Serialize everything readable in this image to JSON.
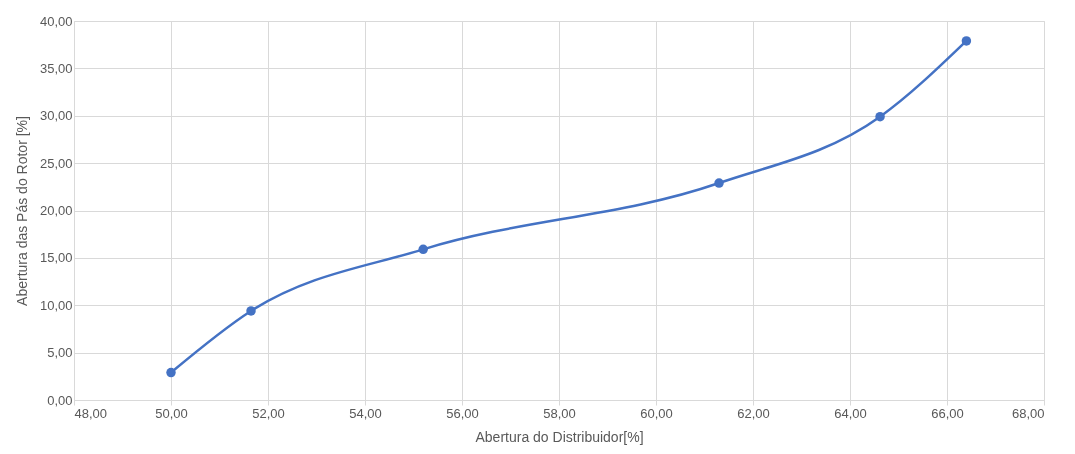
{
  "chart_data": {
    "type": "line",
    "xlabel": "Abertura do Distribuidor[%]",
    "ylabel": "Abertura das Pás do Rotor [%]",
    "x": [
      50.0,
      51.65,
      55.2,
      61.3,
      64.62,
      66.4
    ],
    "series": [
      {
        "color": "#4472c4",
        "values": [
          2.9,
          9.4,
          15.9,
          22.9,
          29.9,
          37.9
        ]
      }
    ],
    "xlim": [
      48,
      68
    ],
    "xticks": [
      {
        "value": 48,
        "label": "48,00"
      },
      {
        "value": 50,
        "label": "50,00"
      },
      {
        "value": 52,
        "label": "52,00"
      },
      {
        "value": 54,
        "label": "54,00"
      },
      {
        "value": 56,
        "label": "56,00"
      },
      {
        "value": 58,
        "label": "58,00"
      },
      {
        "value": 60,
        "label": "60,00"
      },
      {
        "value": 62,
        "label": "62,00"
      },
      {
        "value": 64,
        "label": "64,00"
      },
      {
        "value": 66,
        "label": "66,00"
      },
      {
        "value": 68,
        "label": "68,00"
      }
    ],
    "ylim": [
      0,
      40
    ],
    "yticks": [
      {
        "value": 0,
        "label": "0,00"
      },
      {
        "value": 5,
        "label": "5,00"
      },
      {
        "value": 10,
        "label": "10,00"
      },
      {
        "value": 15,
        "label": "15,00"
      },
      {
        "value": 20,
        "label": "20,00"
      },
      {
        "value": 25,
        "label": "25,00"
      },
      {
        "value": 30,
        "label": "30,00"
      },
      {
        "value": 35,
        "label": "35,00"
      },
      {
        "value": 40,
        "label": "40,00"
      }
    ],
    "grid": true,
    "marker": "circle",
    "line_style": "solid"
  }
}
